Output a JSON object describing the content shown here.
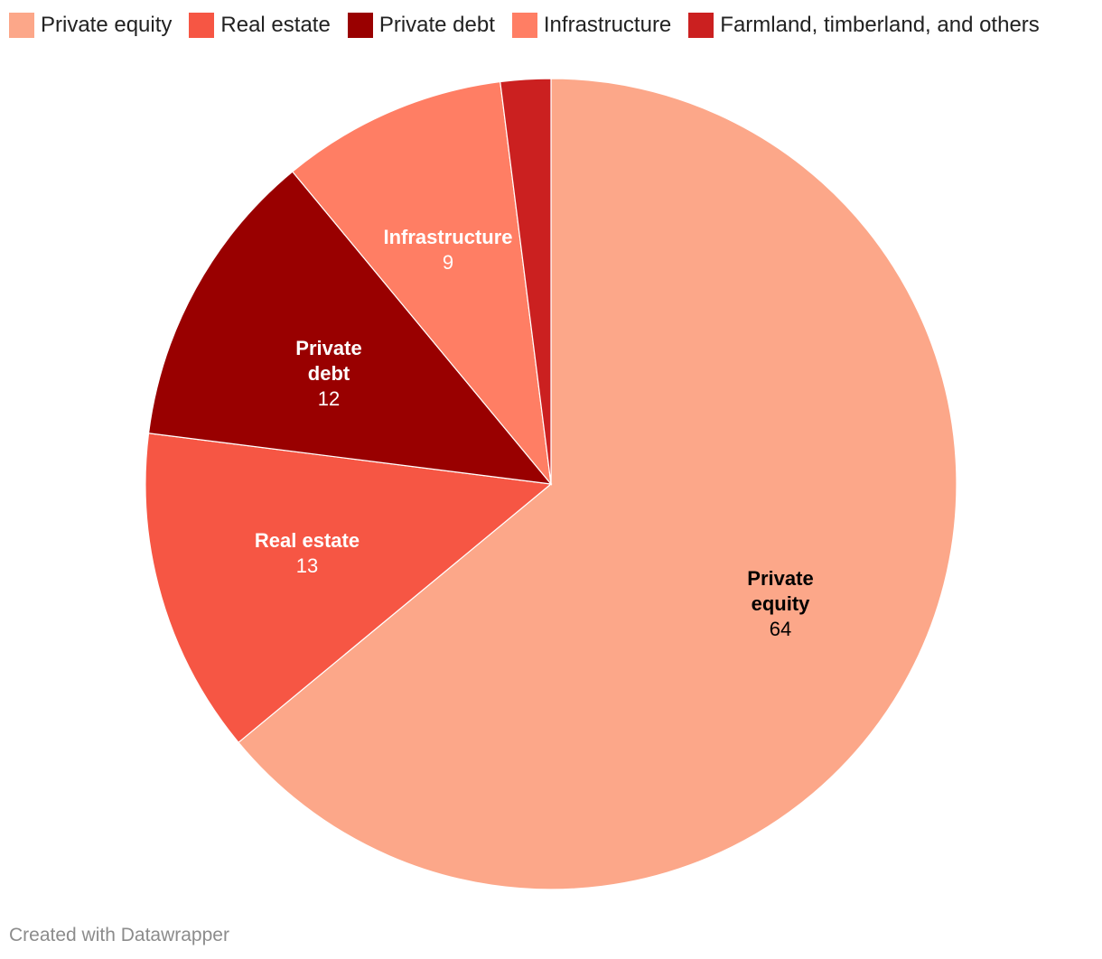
{
  "chart_data": {
    "type": "pie",
    "slices": [
      {
        "name": "Private equity",
        "value": 64,
        "color": "#fca789",
        "label_color": "#000000"
      },
      {
        "name": "Real estate",
        "value": 13,
        "color": "#f65644",
        "label_color": "#ffffff"
      },
      {
        "name": "Private debt",
        "value": 12,
        "color": "#990000",
        "label_color": "#ffffff"
      },
      {
        "name": "Infrastructure",
        "value": 9,
        "color": "#ff7e64",
        "label_color": "#ffffff"
      },
      {
        "name": "Farmland, timberland, and others",
        "value": 2,
        "color": "#cb2020",
        "label_color": "#ffffff"
      }
    ],
    "legend": {
      "placement": "top-left",
      "items": [
        "Private equity",
        "Real estate",
        "Private debt",
        "Infrastructure",
        "Farmland, timberland, and others"
      ]
    },
    "direction": "clockwise",
    "start_angle": "12 o'clock"
  },
  "credit": "Created with Datawrapper"
}
